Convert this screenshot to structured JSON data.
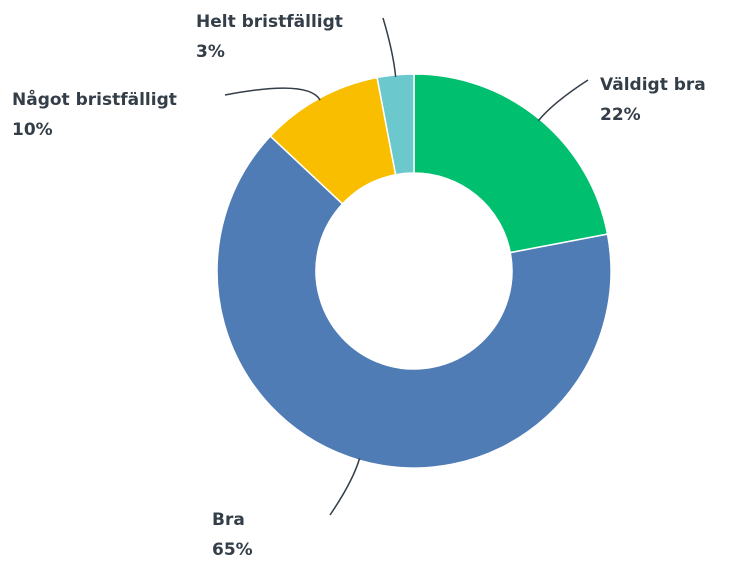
{
  "chart_data": {
    "type": "donut",
    "categories": [
      "Väldigt bra",
      "Bra",
      "Något bristfälligt",
      "Helt bristfälligt"
    ],
    "values": [
      22,
      65,
      10,
      3
    ],
    "value_labels": [
      "22%",
      "65%",
      "10%",
      "3%"
    ],
    "colors": [
      "#00bf6f",
      "#507cb6",
      "#f9be00",
      "#6bc8cd"
    ]
  }
}
